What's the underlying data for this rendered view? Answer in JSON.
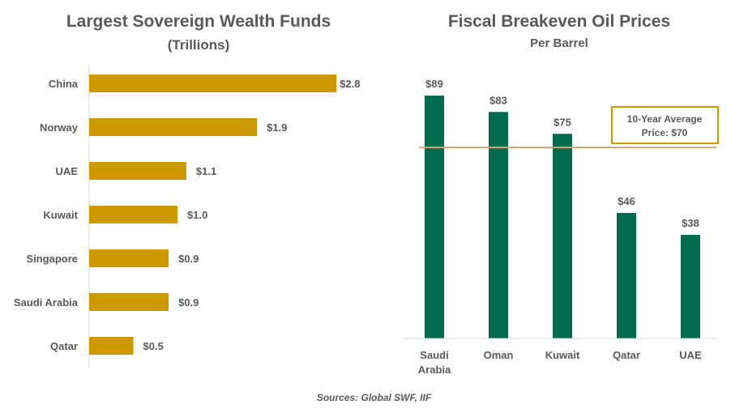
{
  "chart_data": [
    {
      "type": "bar",
      "orientation": "horizontal",
      "title": "Largest Sovereign Wealth Funds",
      "subtitle": "(Trillions)",
      "categories": [
        "China",
        "Norway",
        "UAE",
        "Kuwait",
        "Singapore",
        "Saudi Arabia",
        "Qatar"
      ],
      "values": [
        2.8,
        1.9,
        1.1,
        1.0,
        0.9,
        0.9,
        0.5
      ],
      "data_labels": [
        "$2.8",
        "$1.9",
        "$1.1",
        "$1.0",
        "$0.9",
        "$0.9",
        "$0.5"
      ],
      "grid": false,
      "color": "#CC9900"
    },
    {
      "type": "bar",
      "title": "Fiscal Breakeven Oil Prices",
      "subtitle": "Per Barrel",
      "categories": [
        "Saudi Arabia",
        "Oman",
        "Kuwait",
        "Qatar",
        "UAE"
      ],
      "category_lines": [
        [
          "Saudi",
          "Arabia"
        ],
        [
          "Oman"
        ],
        [
          "Kuwait"
        ],
        [
          "Qatar"
        ],
        [
          "UAE"
        ]
      ],
      "values": [
        89,
        83,
        75,
        46,
        38
      ],
      "data_labels": [
        "$89",
        "$83",
        "$75",
        "$46",
        "$38"
      ],
      "reference_line": {
        "value": 70,
        "label_lines": [
          "10-Year Average",
          "Price: $70"
        ],
        "color": "#D4A373"
      },
      "grid": false,
      "color": "#006B4D"
    }
  ],
  "source": "Sources: Global SWF, IIF"
}
